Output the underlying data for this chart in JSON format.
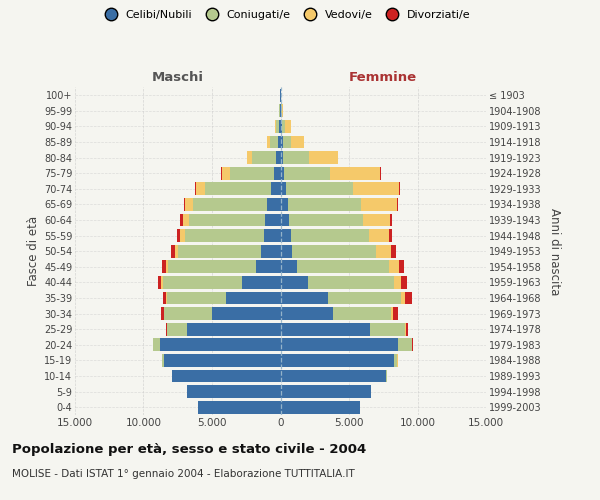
{
  "age_groups": [
    "0-4",
    "5-9",
    "10-14",
    "15-19",
    "20-24",
    "25-29",
    "30-34",
    "35-39",
    "40-44",
    "45-49",
    "50-54",
    "55-59",
    "60-64",
    "65-69",
    "70-74",
    "75-79",
    "80-84",
    "85-89",
    "90-94",
    "95-99",
    "100+"
  ],
  "birth_years": [
    "1999-2003",
    "1994-1998",
    "1989-1993",
    "1984-1988",
    "1979-1983",
    "1974-1978",
    "1969-1973",
    "1964-1968",
    "1959-1963",
    "1954-1958",
    "1949-1953",
    "1944-1948",
    "1939-1943",
    "1934-1938",
    "1929-1933",
    "1924-1928",
    "1919-1923",
    "1914-1918",
    "1909-1913",
    "1904-1908",
    "≤ 1903"
  ],
  "males_celibe": [
    6000,
    6800,
    7900,
    8500,
    8800,
    6800,
    5000,
    4000,
    2800,
    1800,
    1400,
    1200,
    1100,
    1000,
    700,
    500,
    300,
    150,
    80,
    30,
    20
  ],
  "males_coniugato": [
    3,
    8,
    40,
    130,
    500,
    1500,
    3500,
    4300,
    5800,
    6400,
    6100,
    5800,
    5600,
    5400,
    4800,
    3200,
    1800,
    600,
    250,
    50,
    10
  ],
  "males_vedovo": [
    0,
    0,
    1,
    3,
    8,
    15,
    40,
    70,
    110,
    160,
    220,
    320,
    450,
    550,
    700,
    600,
    350,
    200,
    100,
    30,
    5
  ],
  "males_divorziato": [
    0,
    0,
    2,
    8,
    25,
    70,
    180,
    230,
    250,
    280,
    250,
    200,
    150,
    100,
    50,
    20,
    10,
    5,
    0,
    0,
    0
  ],
  "females_nubile": [
    5800,
    6600,
    7700,
    8300,
    8600,
    6500,
    3800,
    3500,
    2000,
    1200,
    850,
    750,
    650,
    550,
    380,
    280,
    180,
    150,
    80,
    30,
    20
  ],
  "females_coniugata": [
    3,
    12,
    60,
    230,
    1000,
    2600,
    4300,
    5300,
    6300,
    6700,
    6100,
    5700,
    5400,
    5300,
    4900,
    3300,
    1900,
    650,
    280,
    50,
    8
  ],
  "females_vedova": [
    0,
    1,
    4,
    12,
    35,
    75,
    140,
    280,
    480,
    750,
    1150,
    1450,
    1950,
    2650,
    3400,
    3700,
    2100,
    900,
    400,
    100,
    5
  ],
  "females_divorziata": [
    0,
    0,
    2,
    12,
    45,
    140,
    340,
    490,
    490,
    390,
    340,
    240,
    150,
    80,
    50,
    20,
    10,
    5,
    0,
    0,
    0
  ],
  "colors": {
    "celibe": "#3a6ea5",
    "coniugato": "#b5c98e",
    "vedovo": "#f5c96a",
    "divorziato": "#cc2222"
  },
  "xlim": 15000,
  "xticks": [
    -15000,
    -10000,
    -5000,
    0,
    5000,
    10000,
    15000
  ],
  "xtick_labels": [
    "15.000",
    "10.000",
    "5.000",
    "0",
    "5.000",
    "10.000",
    "15.000"
  ],
  "title": "Popolazione per età, sesso e stato civile - 2004",
  "subtitle": "MOLISE - Dati ISTAT 1° gennaio 2004 - Elaborazione TUTTITALIA.IT",
  "legend_labels": [
    "Celibi/Nubili",
    "Coniugati/e",
    "Vedovi/e",
    "Divorziati/e"
  ],
  "label_maschi": "Maschi",
  "label_femmine": "Femmine",
  "ylabel_left": "Fasce di età",
  "ylabel_right": "Anni di nascita",
  "bg_color": "#f5f5f0",
  "grid_color": "#cccccc",
  "maschi_color": "#555555",
  "femmine_color": "#aa3333"
}
